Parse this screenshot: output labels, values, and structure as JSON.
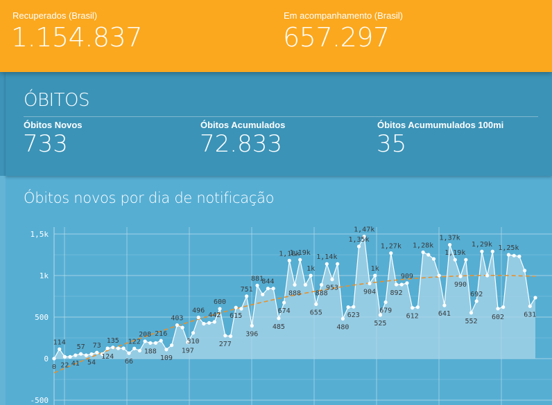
{
  "header": {
    "recovered_label": "Recuperados (Brasil)",
    "recovered_value": "1.154.837",
    "monitoring_label": "Em acompanhamento (Brasil)",
    "monitoring_value": "657.297"
  },
  "deaths": {
    "title": "ÓBITOS",
    "new_label": "Óbitos Novos",
    "new_value": "733",
    "cumulative_label": "Óbitos Acumulados",
    "cumulative_value": "72.833",
    "per100k_label": "Óbitos Acumumulados 100mi",
    "per100k_value": "35"
  },
  "chart_data": {
    "type": "area",
    "title": "Óbitos novos por dia de notificação",
    "xlabel": "",
    "ylabel": "",
    "ylim": [
      -500,
      1500
    ],
    "yticks": [
      -500,
      0,
      500,
      1000,
      1500
    ],
    "ytick_labels": [
      "-500",
      "0",
      "500",
      "1k",
      "1,5k"
    ],
    "grid": true,
    "trendline": true,
    "colors": {
      "area": "#a9d6ea",
      "line": "#ffffff",
      "trend": "#e8902a",
      "grid": "#b8dcea"
    },
    "values": [
      0,
      114,
      22,
      22,
      41,
      57,
      41,
      54,
      73,
      54,
      124,
      135,
      124,
      124,
      66,
      122,
      96,
      208,
      188,
      188,
      216,
      109,
      161,
      403,
      374,
      197,
      310,
      496,
      420,
      430,
      442,
      600,
      277,
      270,
      615,
      600,
      751,
      396,
      881,
      772,
      844,
      844,
      485,
      674,
      1180,
      888,
      1190,
      888,
      1000,
      655,
      888,
      1140,
      953,
      1140,
      480,
      620,
      623,
      1350,
      1470,
      904,
      1000,
      525,
      679,
      1270,
      892,
      892,
      909,
      612,
      620,
      1280,
      1250,
      1200,
      1000,
      641,
      1370,
      1190,
      990,
      1190,
      552,
      692,
      1290,
      1000,
      1290,
      602,
      620,
      1250,
      1240,
      1230,
      1060,
      631,
      733
    ],
    "point_labels": [
      {
        "i": 0,
        "text": "0",
        "pos": "below"
      },
      {
        "i": 1,
        "text": "114",
        "pos": "above"
      },
      {
        "i": 2,
        "text": "22",
        "pos": "below"
      },
      {
        "i": 4,
        "text": "41",
        "pos": "below"
      },
      {
        "i": 5,
        "text": "57",
        "pos": "above"
      },
      {
        "i": 7,
        "text": "54",
        "pos": "below"
      },
      {
        "i": 8,
        "text": "73",
        "pos": "above"
      },
      {
        "i": 10,
        "text": "124",
        "pos": "below"
      },
      {
        "i": 11,
        "text": "135",
        "pos": "above"
      },
      {
        "i": 14,
        "text": "66",
        "pos": "below"
      },
      {
        "i": 15,
        "text": "122",
        "pos": "above"
      },
      {
        "i": 17,
        "text": "208",
        "pos": "above"
      },
      {
        "i": 18,
        "text": "188",
        "pos": "below"
      },
      {
        "i": 20,
        "text": "216",
        "pos": "above"
      },
      {
        "i": 21,
        "text": "109",
        "pos": "below"
      },
      {
        "i": 23,
        "text": "403",
        "pos": "above"
      },
      {
        "i": 25,
        "text": "197",
        "pos": "below"
      },
      {
        "i": 26,
        "text": "310",
        "pos": "below"
      },
      {
        "i": 27,
        "text": "496",
        "pos": "above"
      },
      {
        "i": 30,
        "text": "442",
        "pos": "above"
      },
      {
        "i": 31,
        "text": "600",
        "pos": "above"
      },
      {
        "i": 32,
        "text": "277",
        "pos": "below"
      },
      {
        "i": 34,
        "text": "615",
        "pos": "below"
      },
      {
        "i": 36,
        "text": "751",
        "pos": "above"
      },
      {
        "i": 37,
        "text": "396",
        "pos": "below"
      },
      {
        "i": 38,
        "text": "881",
        "pos": "above"
      },
      {
        "i": 40,
        "text": "844",
        "pos": "above"
      },
      {
        "i": 42,
        "text": "485",
        "pos": "below"
      },
      {
        "i": 43,
        "text": "674",
        "pos": "below"
      },
      {
        "i": 44,
        "text": "1,18k",
        "pos": "above"
      },
      {
        "i": 45,
        "text": "888",
        "pos": "below"
      },
      {
        "i": 46,
        "text": "1,19k",
        "pos": "above"
      },
      {
        "i": 48,
        "text": "1k",
        "pos": "above"
      },
      {
        "i": 49,
        "text": "655",
        "pos": "below"
      },
      {
        "i": 50,
        "text": "888",
        "pos": "below"
      },
      {
        "i": 51,
        "text": "1,14k",
        "pos": "above"
      },
      {
        "i": 52,
        "text": "953",
        "pos": "below"
      },
      {
        "i": 54,
        "text": "480",
        "pos": "below"
      },
      {
        "i": 56,
        "text": "623",
        "pos": "below"
      },
      {
        "i": 57,
        "text": "1,35k",
        "pos": "above"
      },
      {
        "i": 58,
        "text": "1,47k",
        "pos": "above"
      },
      {
        "i": 59,
        "text": "904",
        "pos": "below"
      },
      {
        "i": 60,
        "text": "1k",
        "pos": "above"
      },
      {
        "i": 61,
        "text": "525",
        "pos": "below"
      },
      {
        "i": 62,
        "text": "679",
        "pos": "below"
      },
      {
        "i": 63,
        "text": "1,27k",
        "pos": "above"
      },
      {
        "i": 64,
        "text": "892",
        "pos": "below"
      },
      {
        "i": 66,
        "text": "909",
        "pos": "above"
      },
      {
        "i": 67,
        "text": "612",
        "pos": "below"
      },
      {
        "i": 69,
        "text": "1,28k",
        "pos": "above"
      },
      {
        "i": 73,
        "text": "641",
        "pos": "below"
      },
      {
        "i": 74,
        "text": "1,37k",
        "pos": "above"
      },
      {
        "i": 75,
        "text": "1,19k",
        "pos": "above"
      },
      {
        "i": 76,
        "text": "990",
        "pos": "below"
      },
      {
        "i": 78,
        "text": "552",
        "pos": "below"
      },
      {
        "i": 79,
        "text": "692",
        "pos": "above"
      },
      {
        "i": 80,
        "text": "1,29k",
        "pos": "above"
      },
      {
        "i": 83,
        "text": "602",
        "pos": "below"
      },
      {
        "i": 85,
        "text": "1,25k",
        "pos": "above"
      },
      {
        "i": 89,
        "text": "631",
        "pos": "below"
      }
    ]
  }
}
